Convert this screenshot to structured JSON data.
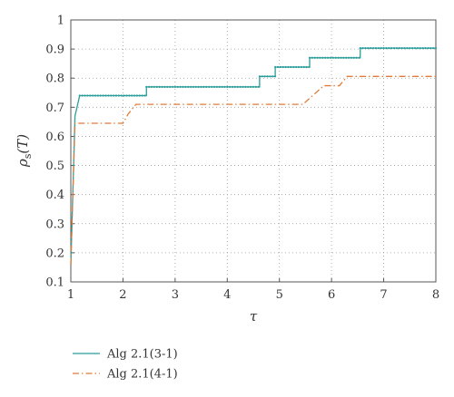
{
  "chart_data": {
    "type": "line",
    "ylabel_main": "ρ",
    "ylabel_sub": "s",
    "ylabel_rest": "(T)",
    "xlabel": "τ",
    "xlim": [
      1,
      8
    ],
    "ylim": [
      0.1,
      1
    ],
    "xticks": [
      "1",
      "2",
      "3",
      "4",
      "5",
      "6",
      "7",
      "8"
    ],
    "yticks": [
      "0.1",
      "0.2",
      "0.3",
      "0.4",
      "0.5",
      "0.6",
      "0.7",
      "0.8",
      "0.9",
      "1"
    ],
    "grid": true,
    "legend_position": "bottom-left",
    "series": [
      {
        "name": "Alg 2.1(3-1)",
        "color": "#2a9d9b",
        "style": "solid",
        "markers": true,
        "points": [
          [
            1.0,
            0.16
          ],
          [
            1.08,
            0.67
          ],
          [
            1.17,
            0.74
          ],
          [
            2.45,
            0.74
          ],
          [
            2.45,
            0.77
          ],
          [
            4.62,
            0.77
          ],
          [
            4.62,
            0.806
          ],
          [
            4.92,
            0.806
          ],
          [
            4.92,
            0.838
          ],
          [
            5.58,
            0.838
          ],
          [
            5.58,
            0.87
          ],
          [
            6.55,
            0.87
          ],
          [
            6.55,
            0.903
          ],
          [
            8.0,
            0.903
          ]
        ]
      },
      {
        "name": "Alg 2.1(4-1)",
        "color": "#e07b39",
        "style": "dashdot",
        "markers": false,
        "points": [
          [
            1.0,
            0.16
          ],
          [
            1.08,
            0.645
          ],
          [
            2.0,
            0.645
          ],
          [
            2.1,
            0.677
          ],
          [
            2.25,
            0.71
          ],
          [
            5.45,
            0.71
          ],
          [
            5.65,
            0.742
          ],
          [
            5.85,
            0.774
          ],
          [
            6.15,
            0.774
          ],
          [
            6.3,
            0.806
          ],
          [
            8.0,
            0.806
          ]
        ]
      }
    ]
  }
}
